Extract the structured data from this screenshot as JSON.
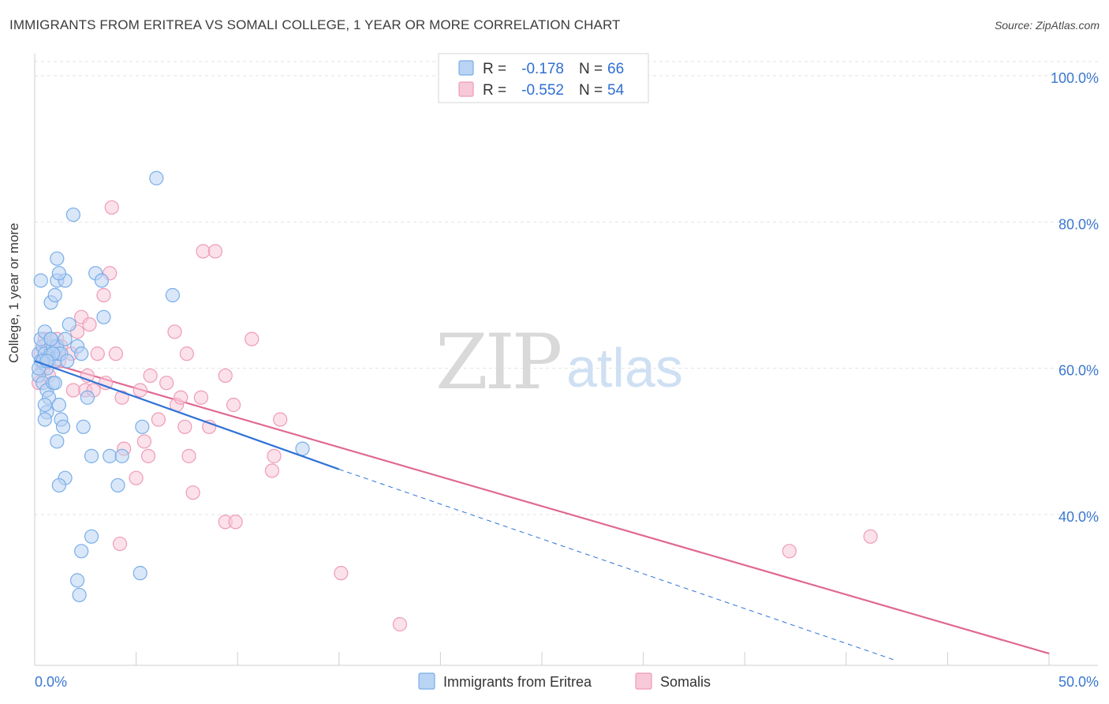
{
  "chart_data": {
    "type": "scatter",
    "title": "IMMIGRANTS FROM ERITREA VS SOMALI COLLEGE, 1 YEAR OR MORE CORRELATION CHART",
    "source": "Source: ZipAtlas.com",
    "xlabel": "",
    "ylabel": "College, 1 year or more",
    "xlim": [
      0,
      50
    ],
    "ylim": [
      20,
      102
    ],
    "x_tick_labels": [
      "0.0%",
      "50.0%"
    ],
    "y_ticks": [
      40,
      60,
      80,
      100
    ],
    "y_tick_labels": [
      "40.0%",
      "60.0%",
      "80.0%",
      "100.0%"
    ],
    "watermark": {
      "part1": "ZIP",
      "part2": "atlas"
    },
    "legend_stats": [
      {
        "r_label": "R =",
        "r_value": "-0.178",
        "n_label": "N =",
        "n_value": "66"
      },
      {
        "r_label": "R =",
        "r_value": "-0.552",
        "n_label": "N =",
        "n_value": "54"
      }
    ],
    "series": [
      {
        "name": "Immigrants from Eritrea",
        "color": "#7aaee8",
        "fill": "#b9d3f4",
        "line_color": "#2f72d6",
        "trend": {
          "x0": 0,
          "y0": 61.0,
          "x1": 15,
          "y1": 46.2,
          "dash_x1": 42.5,
          "dash_y1": 20
        },
        "points": [
          [
            0.2,
            62
          ],
          [
            0.3,
            61
          ],
          [
            0.4,
            63
          ],
          [
            0.5,
            62
          ],
          [
            0.6,
            60
          ],
          [
            0.7,
            61
          ],
          [
            0.8,
            62
          ],
          [
            0.9,
            63
          ],
          [
            1.0,
            61
          ],
          [
            1.2,
            62
          ],
          [
            0.3,
            64
          ],
          [
            0.5,
            65
          ],
          [
            0.8,
            64
          ],
          [
            1.1,
            63
          ],
          [
            1.3,
            62
          ],
          [
            1.5,
            64
          ],
          [
            0.2,
            59
          ],
          [
            0.4,
            58
          ],
          [
            0.6,
            57
          ],
          [
            0.9,
            58
          ],
          [
            0.3,
            72
          ],
          [
            0.8,
            69
          ],
          [
            1.0,
            70
          ],
          [
            1.1,
            72
          ],
          [
            1.5,
            72
          ],
          [
            1.2,
            73
          ],
          [
            1.1,
            75
          ],
          [
            1.7,
            66
          ],
          [
            2.1,
            63
          ],
          [
            2.3,
            62
          ],
          [
            0.7,
            56
          ],
          [
            1.2,
            55
          ],
          [
            0.6,
            54
          ],
          [
            0.5,
            53
          ],
          [
            1.3,
            53
          ],
          [
            1.4,
            52
          ],
          [
            1.1,
            50
          ],
          [
            2.4,
            52
          ],
          [
            2.8,
            48
          ],
          [
            3.7,
            48
          ],
          [
            4.3,
            48
          ],
          [
            1.5,
            45
          ],
          [
            1.2,
            44
          ],
          [
            4.1,
            44
          ],
          [
            2.8,
            37
          ],
          [
            2.3,
            35
          ],
          [
            2.1,
            31
          ],
          [
            2.2,
            29
          ],
          [
            5.2,
            32
          ],
          [
            5.3,
            52
          ],
          [
            6.8,
            70
          ],
          [
            3.0,
            73
          ],
          [
            3.3,
            72
          ],
          [
            3.4,
            67
          ],
          [
            1.9,
            81
          ],
          [
            6.0,
            86
          ],
          [
            13.2,
            49
          ],
          [
            0.4,
            61
          ],
          [
            0.9,
            62
          ],
          [
            1.6,
            61
          ],
          [
            0.2,
            60
          ],
          [
            0.6,
            61
          ],
          [
            1.0,
            58
          ],
          [
            0.5,
            55
          ],
          [
            0.8,
            64
          ],
          [
            2.6,
            56
          ]
        ]
      },
      {
        "name": "Somalis",
        "color": "#ef9bb6",
        "fill": "#f7c8d8",
        "line_color": "#e06892",
        "trend": {
          "x0": 0,
          "y0": 61.3,
          "x1": 50,
          "y1": 21.0
        },
        "points": [
          [
            0.3,
            62
          ],
          [
            0.5,
            61
          ],
          [
            0.8,
            63
          ],
          [
            1.0,
            62
          ],
          [
            1.2,
            61
          ],
          [
            0.4,
            60
          ],
          [
            0.7,
            59
          ],
          [
            0.2,
            58
          ],
          [
            0.5,
            64
          ],
          [
            1.1,
            64
          ],
          [
            1.3,
            63
          ],
          [
            1.8,
            62
          ],
          [
            2.1,
            65
          ],
          [
            2.3,
            67
          ],
          [
            2.7,
            66
          ],
          [
            3.1,
            62
          ],
          [
            3.4,
            70
          ],
          [
            3.7,
            73
          ],
          [
            4.0,
            62
          ],
          [
            2.6,
            59
          ],
          [
            1.9,
            57
          ],
          [
            2.5,
            57
          ],
          [
            2.9,
            57
          ],
          [
            3.5,
            58
          ],
          [
            4.3,
            56
          ],
          [
            5.2,
            57
          ],
          [
            5.7,
            59
          ],
          [
            6.1,
            53
          ],
          [
            6.5,
            58
          ],
          [
            7.0,
            55
          ],
          [
            7.2,
            56
          ],
          [
            7.4,
            52
          ],
          [
            7.6,
            48
          ],
          [
            8.2,
            56
          ],
          [
            8.6,
            52
          ],
          [
            9.4,
            59
          ],
          [
            9.8,
            55
          ],
          [
            10.7,
            64
          ],
          [
            12.1,
            53
          ],
          [
            11.8,
            48
          ],
          [
            11.7,
            46
          ],
          [
            3.8,
            82
          ],
          [
            8.3,
            76
          ],
          [
            8.9,
            76
          ],
          [
            6.9,
            65
          ],
          [
            7.5,
            62
          ],
          [
            4.4,
            49
          ],
          [
            5.4,
            50
          ],
          [
            5.6,
            48
          ],
          [
            5.0,
            45
          ],
          [
            7.8,
            43
          ],
          [
            9.4,
            39
          ],
          [
            9.9,
            39
          ],
          [
            4.2,
            36
          ]
        ],
        "outliers": [
          [
            15.1,
            32
          ],
          [
            18.0,
            25
          ],
          [
            37.2,
            35
          ],
          [
            41.2,
            37
          ]
        ]
      }
    ]
  }
}
